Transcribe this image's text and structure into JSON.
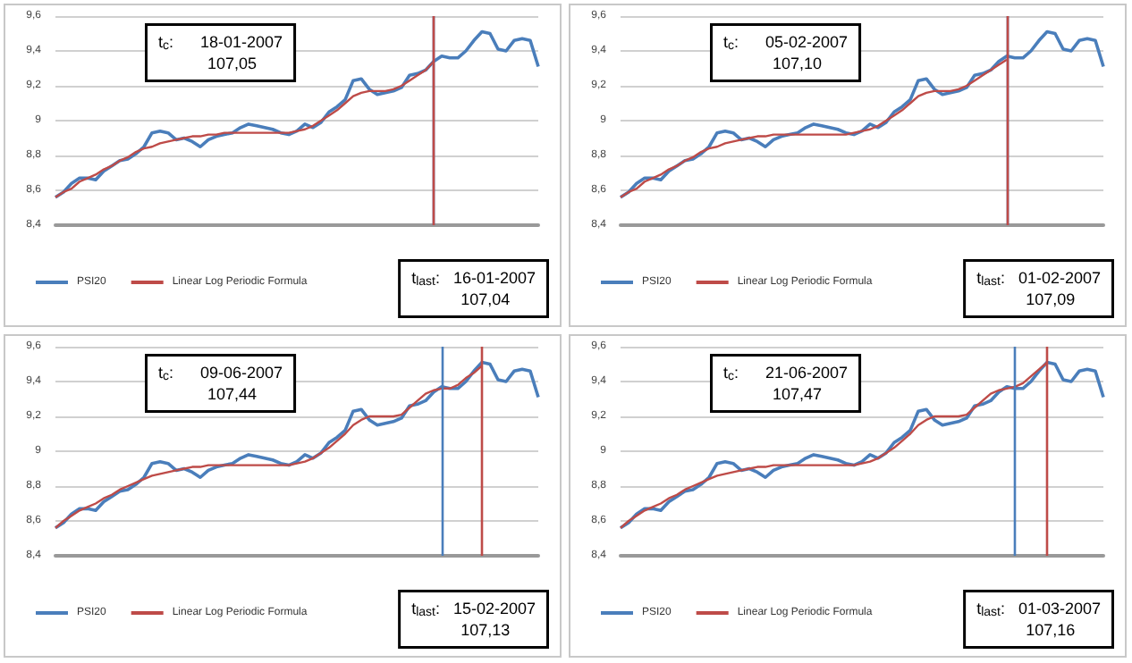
{
  "chart_data": [
    {
      "type": "line",
      "categories": [
        null,
        null,
        null,
        null,
        null,
        null,
        null,
        null,
        null,
        null,
        null,
        null,
        null,
        null,
        null,
        null,
        null,
        null,
        null,
        null,
        null,
        null,
        null,
        null,
        null,
        null,
        null,
        null,
        null,
        null,
        null,
        null,
        null,
        null,
        null,
        null,
        null,
        null,
        null,
        null,
        null,
        null,
        null,
        null,
        null,
        null,
        null,
        null,
        null,
        null,
        null,
        null,
        null,
        null,
        null,
        null,
        null,
        null,
        null,
        null,
        null
      ],
      "ylim": [
        8.4,
        9.6
      ],
      "yticks": [
        {
          "value": 8.4,
          "label": "8,4"
        },
        {
          "value": 8.6,
          "label": "8,6"
        },
        {
          "value": 8.8,
          "label": "8,8"
        },
        {
          "value": 9,
          "label": "9"
        },
        {
          "value": 9.2,
          "label": "9,2"
        },
        {
          "value": 9.4,
          "label": "9,4"
        },
        {
          "value": 9.6,
          "label": "9,6"
        }
      ],
      "grid": "y",
      "legend": "bottom",
      "annotations": [
        "t$_{c}$:      18-01-2007\n           107,05",
        "t$_{last}$:   16-01-2007\n           107,04"
      ],
      "series": [
        {
          "name": "PSI20",
          "color": "#4a7ebb",
          "values": [
            8.56,
            8.59,
            8.64,
            8.67,
            8.67,
            8.66,
            8.71,
            8.74,
            8.77,
            8.78,
            8.81,
            8.85,
            8.93,
            8.94,
            8.93,
            8.89,
            8.9,
            8.88,
            8.85,
            8.89,
            8.91,
            8.92,
            8.93,
            8.96,
            8.98,
            8.97,
            8.96,
            8.95,
            8.93,
            8.92,
            8.94,
            8.98,
            8.96,
            8.99,
            9.05,
            9.08,
            9.12,
            9.23,
            9.24,
            9.18,
            9.15,
            9.16,
            9.17,
            9.19,
            9.26,
            9.27,
            9.29,
            9.34,
            9.37,
            9.36,
            9.36,
            9.4,
            9.46,
            9.51,
            9.5,
            9.41,
            9.4,
            9.46,
            9.47,
            9.46,
            9.31
          ]
        },
        {
          "name": "Linear Log Periodic Formula",
          "color": "#be4b48",
          "values": [
            8.56,
            8.59,
            8.61,
            8.65,
            8.67,
            8.69,
            8.72,
            8.74,
            8.77,
            8.79,
            8.82,
            8.84,
            8.85,
            8.87,
            8.88,
            8.89,
            8.9,
            8.91,
            8.91,
            8.92,
            8.92,
            8.93,
            8.93,
            8.93,
            8.93,
            8.93,
            8.93,
            8.93,
            8.93,
            8.93,
            8.94,
            8.95,
            8.97,
            9.0,
            9.03,
            9.06,
            9.1,
            9.14,
            9.16,
            9.17,
            9.17,
            9.17,
            9.18,
            9.2,
            9.23,
            9.26,
            9.29,
            9.34,
            null,
            null,
            null,
            null,
            null,
            null,
            null,
            null,
            null,
            null,
            null,
            null,
            null
          ]
        }
      ]
    },
    {
      "type": "line",
      "categories": [
        null,
        null,
        null,
        null,
        null,
        null,
        null,
        null,
        null,
        null,
        null,
        null,
        null,
        null,
        null,
        null,
        null,
        null,
        null,
        null,
        null,
        null,
        null,
        null,
        null,
        null,
        null,
        null,
        null,
        null,
        null,
        null,
        null,
        null,
        null,
        null,
        null,
        null,
        null,
        null,
        null,
        null,
        null,
        null,
        null,
        null,
        null,
        null,
        null,
        null,
        null,
        null,
        null,
        null,
        null,
        null,
        null,
        null,
        null,
        null,
        null
      ],
      "ylim": [
        8.4,
        9.6
      ],
      "yticks": [
        {
          "value": 8.4,
          "label": "8,4"
        },
        {
          "value": 8.6,
          "label": "8,6"
        },
        {
          "value": 8.8,
          "label": "8,8"
        },
        {
          "value": 9,
          "label": "9"
        },
        {
          "value": 9.2,
          "label": "9,2"
        },
        {
          "value": 9.4,
          "label": "9,4"
        },
        {
          "value": 9.6,
          "label": "9,6"
        }
      ],
      "grid": "y",
      "legend": "bottom",
      "annotations": [
        "t$_{c}$:      05-02-2007\n           107,10",
        "t$_{last}$:   01-02-2007\n           107,09"
      ],
      "series": [
        {
          "name": "PSI20",
          "color": "#4a7ebb",
          "values": [
            8.56,
            8.59,
            8.64,
            8.67,
            8.67,
            8.66,
            8.71,
            8.74,
            8.77,
            8.78,
            8.81,
            8.85,
            8.93,
            8.94,
            8.93,
            8.89,
            8.9,
            8.88,
            8.85,
            8.89,
            8.91,
            8.92,
            8.93,
            8.96,
            8.98,
            8.97,
            8.96,
            8.95,
            8.93,
            8.92,
            8.94,
            8.98,
            8.96,
            8.99,
            9.05,
            9.08,
            9.12,
            9.23,
            9.24,
            9.18,
            9.15,
            9.16,
            9.17,
            9.19,
            9.26,
            9.27,
            9.29,
            9.34,
            9.37,
            9.36,
            9.36,
            9.4,
            9.46,
            9.51,
            9.5,
            9.41,
            9.4,
            9.46,
            9.47,
            9.46,
            9.31
          ]
        },
        {
          "name": "Linear Log Periodic Formula",
          "color": "#be4b48",
          "values": [
            8.56,
            8.59,
            8.61,
            8.65,
            8.67,
            8.69,
            8.72,
            8.74,
            8.77,
            8.79,
            8.82,
            8.84,
            8.85,
            8.87,
            8.88,
            8.89,
            8.9,
            8.91,
            8.91,
            8.92,
            8.92,
            8.92,
            8.92,
            8.92,
            8.92,
            8.92,
            8.92,
            8.92,
            8.92,
            8.93,
            8.94,
            8.95,
            8.97,
            9.0,
            9.03,
            9.06,
            9.1,
            9.14,
            9.16,
            9.17,
            9.17,
            9.17,
            9.18,
            9.2,
            9.23,
            9.26,
            9.29,
            9.32,
            9.35,
            null,
            null,
            null,
            null,
            null,
            null,
            null,
            null,
            null,
            null,
            null,
            null
          ]
        }
      ]
    },
    {
      "type": "line",
      "categories": [
        null,
        null,
        null,
        null,
        null,
        null,
        null,
        null,
        null,
        null,
        null,
        null,
        null,
        null,
        null,
        null,
        null,
        null,
        null,
        null,
        null,
        null,
        null,
        null,
        null,
        null,
        null,
        null,
        null,
        null,
        null,
        null,
        null,
        null,
        null,
        null,
        null,
        null,
        null,
        null,
        null,
        null,
        null,
        null,
        null,
        null,
        null,
        null,
        null,
        null,
        null,
        null,
        null,
        null,
        null,
        null,
        null,
        null,
        null,
        null,
        null
      ],
      "ylim": [
        8.4,
        9.6
      ],
      "yticks": [
        {
          "value": 8.4,
          "label": "8,4"
        },
        {
          "value": 8.6,
          "label": "8,6"
        },
        {
          "value": 8.8,
          "label": "8,8"
        },
        {
          "value": 9,
          "label": "9"
        },
        {
          "value": 9.2,
          "label": "9,2"
        },
        {
          "value": 9.4,
          "label": "9,4"
        },
        {
          "value": 9.6,
          "label": "9,6"
        }
      ],
      "grid": "y",
      "legend": "bottom",
      "annotations": [
        "t$_{c}$:      09-06-2007\n           107,44",
        "t$_{last}$:   15-02-2007\n           107,13"
      ],
      "series": [
        {
          "name": "PSI20",
          "color": "#4a7ebb",
          "values": [
            8.56,
            8.59,
            8.64,
            8.67,
            8.67,
            8.66,
            8.71,
            8.74,
            8.77,
            8.78,
            8.81,
            8.85,
            8.93,
            8.94,
            8.93,
            8.89,
            8.9,
            8.88,
            8.85,
            8.89,
            8.91,
            8.92,
            8.93,
            8.96,
            8.98,
            8.97,
            8.96,
            8.95,
            8.93,
            8.92,
            8.94,
            8.98,
            8.96,
            8.99,
            9.05,
            9.08,
            9.12,
            9.23,
            9.24,
            9.18,
            9.15,
            9.16,
            9.17,
            9.19,
            9.26,
            9.27,
            9.29,
            9.34,
            9.37,
            9.36,
            9.36,
            9.4,
            9.46,
            9.51,
            9.5,
            9.41,
            9.4,
            9.46,
            9.47,
            9.46,
            9.31
          ]
        },
        {
          "name": "Linear Log Periodic Formula",
          "color": "#be4b48",
          "values": [
            8.56,
            8.6,
            8.63,
            8.66,
            8.68,
            8.7,
            8.73,
            8.75,
            8.78,
            8.8,
            8.82,
            8.84,
            8.86,
            8.87,
            8.88,
            8.89,
            8.9,
            8.91,
            8.91,
            8.92,
            8.92,
            8.92,
            8.92,
            8.92,
            8.92,
            8.92,
            8.92,
            8.92,
            8.92,
            8.92,
            8.93,
            8.94,
            8.96,
            8.99,
            9.02,
            9.06,
            9.1,
            9.15,
            9.18,
            9.2,
            9.2,
            9.2,
            9.2,
            9.21,
            9.25,
            9.29,
            9.33,
            9.35,
            9.36,
            9.36,
            9.38,
            9.42,
            9.45,
            9.49,
            null,
            null,
            null,
            null,
            null,
            null,
            null
          ]
        }
      ]
    },
    {
      "type": "line",
      "categories": [
        null,
        null,
        null,
        null,
        null,
        null,
        null,
        null,
        null,
        null,
        null,
        null,
        null,
        null,
        null,
        null,
        null,
        null,
        null,
        null,
        null,
        null,
        null,
        null,
        null,
        null,
        null,
        null,
        null,
        null,
        null,
        null,
        null,
        null,
        null,
        null,
        null,
        null,
        null,
        null,
        null,
        null,
        null,
        null,
        null,
        null,
        null,
        null,
        null,
        null,
        null,
        null,
        null,
        null,
        null,
        null,
        null,
        null,
        null,
        null,
        null
      ],
      "ylim": [
        8.4,
        9.6
      ],
      "yticks": [
        {
          "value": 8.4,
          "label": "8,4"
        },
        {
          "value": 8.6,
          "label": "8,6"
        },
        {
          "value": 8.8,
          "label": "8,8"
        },
        {
          "value": 9,
          "label": "9"
        },
        {
          "value": 9.2,
          "label": "9,2"
        },
        {
          "value": 9.4,
          "label": "9,4"
        },
        {
          "value": 9.6,
          "label": "9,6"
        }
      ],
      "grid": "y",
      "legend": "bottom",
      "annotations": [
        "t$_{c}$:      21-06-2007\n           107,47",
        "t$_{last}$:   01-03-2007\n           107,16"
      ],
      "series": [
        {
          "name": "PSI20",
          "color": "#4a7ebb",
          "values": [
            8.56,
            8.59,
            8.64,
            8.67,
            8.67,
            8.66,
            8.71,
            8.74,
            8.77,
            8.78,
            8.81,
            8.85,
            8.93,
            8.94,
            8.93,
            8.89,
            8.9,
            8.88,
            8.85,
            8.89,
            8.91,
            8.92,
            8.93,
            8.96,
            8.98,
            8.97,
            8.96,
            8.95,
            8.93,
            8.92,
            8.94,
            8.98,
            8.96,
            8.99,
            9.05,
            9.08,
            9.12,
            9.23,
            9.24,
            9.18,
            9.15,
            9.16,
            9.17,
            9.19,
            9.26,
            9.27,
            9.29,
            9.34,
            9.37,
            9.36,
            9.36,
            9.4,
            9.46,
            9.51,
            9.5,
            9.41,
            9.4,
            9.46,
            9.47,
            9.46,
            9.31
          ]
        },
        {
          "name": "Linear Log Periodic Formula",
          "color": "#be4b48",
          "values": [
            8.56,
            8.6,
            8.63,
            8.66,
            8.68,
            8.7,
            8.73,
            8.75,
            8.78,
            8.8,
            8.82,
            8.84,
            8.86,
            8.87,
            8.88,
            8.89,
            8.9,
            8.91,
            8.91,
            8.92,
            8.92,
            8.92,
            8.92,
            8.92,
            8.92,
            8.92,
            8.92,
            8.92,
            8.92,
            8.92,
            8.93,
            8.94,
            8.96,
            8.99,
            9.02,
            9.06,
            9.1,
            9.15,
            9.18,
            9.2,
            9.2,
            9.2,
            9.2,
            9.21,
            9.25,
            9.29,
            9.33,
            9.35,
            9.36,
            9.37,
            9.39,
            9.43,
            9.47,
            9.51,
            null,
            null,
            null,
            null,
            null,
            null,
            null
          ]
        }
      ]
    }
  ]
}
